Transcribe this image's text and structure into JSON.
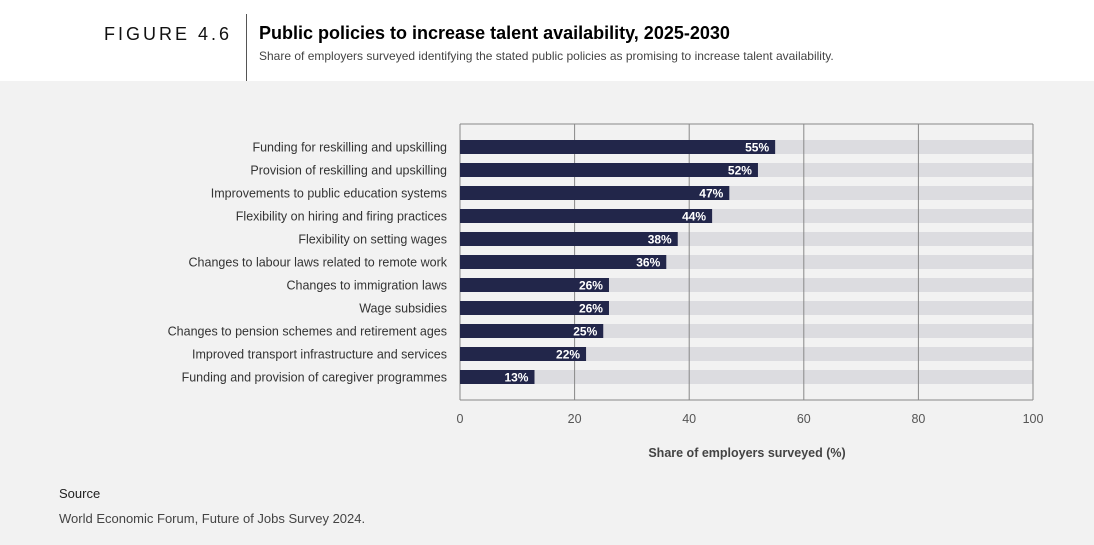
{
  "header": {
    "figure_label": "FIGURE 4.6",
    "title": "Public policies to increase talent availability, 2025-2030",
    "subtitle": "Share of employers surveyed identifying the stated public policies as promising to increase talent availability."
  },
  "source": {
    "label": "Source",
    "text": "World Economic Forum, Future of Jobs Survey 2024."
  },
  "colors": {
    "bar": "#22264a",
    "track": "#dcdce0",
    "grid": "#888888",
    "value_text": "#ffffff"
  },
  "chart_data": {
    "type": "bar",
    "orientation": "horizontal",
    "categories": [
      "Funding for reskilling and upskilling",
      "Provision of reskilling and upskilling",
      "Improvements to public education systems",
      "Flexibility on hiring and firing practices",
      "Flexibility on setting wages",
      "Changes to labour laws related to remote work",
      "Changes to immigration laws",
      "Wage subsidies",
      "Changes to pension schemes and retirement ages",
      "Improved transport infrastructure and services",
      "Funding and provision of caregiver programmes"
    ],
    "values": [
      55,
      52,
      47,
      44,
      38,
      36,
      26,
      26,
      25,
      22,
      13
    ],
    "value_labels": [
      "55%",
      "52%",
      "47%",
      "44%",
      "38%",
      "36%",
      "26%",
      "26%",
      "25%",
      "22%",
      "13%"
    ],
    "xlim": [
      0,
      100
    ],
    "xticks": [
      0,
      20,
      40,
      60,
      80,
      100
    ],
    "xlabel": "Share of employers surveyed (%)",
    "ylabel": "",
    "grid": true,
    "legend": "none"
  }
}
